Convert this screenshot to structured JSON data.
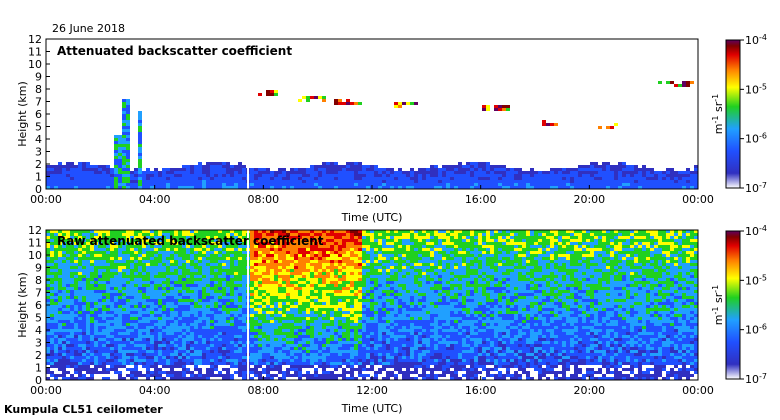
{
  "date_label": "26 June 2018",
  "footer_label": "Kumpula CL51 ceilometer",
  "colormap": [
    "#ffffff",
    "#3030c0",
    "#2050ff",
    "#20a0ff",
    "#20d020",
    "#ffff00",
    "#ff8000",
    "#e00000",
    "#800000",
    "#600060"
  ],
  "chart_data": [
    {
      "type": "heatmap",
      "title": "Attenuated backscatter coefficient",
      "xlabel": "Time (UTC)",
      "ylabel": "Height (km)",
      "xticks": [
        "00:00",
        "04:00",
        "08:00",
        "12:00",
        "16:00",
        "20:00",
        "00:00"
      ],
      "yticks": [
        "0",
        "1",
        "2",
        "3",
        "4",
        "5",
        "6",
        "7",
        "8",
        "9",
        "10",
        "11",
        "12"
      ],
      "xlim": [
        0,
        24
      ],
      "ylim": [
        0,
        12
      ],
      "colorbar": {
        "scale": "log",
        "range": [
          1e-07,
          0.0001
        ],
        "tick_exponents": [
          "-7",
          "-6",
          "-5",
          "-4"
        ],
        "label_unit": "m",
        "label_unit_exp": "-1",
        "label_sr": "sr",
        "label_sr_exp": "-1"
      },
      "features": {
        "boundary_layer": {
          "top_km": 1.8,
          "hours": [
            0,
            24
          ]
        },
        "columns": [
          {
            "hour": 2.6,
            "top_km": 4.5
          },
          {
            "hour": 2.9,
            "top_km": 7.3
          },
          {
            "hour": 3.4,
            "top_km": 6.4
          }
        ],
        "cloud_layers": [
          {
            "hours": [
              7.8,
              8.4
            ],
            "km": 7.8
          },
          {
            "hours": [
              9.2,
              10.2
            ],
            "km": 7.3
          },
          {
            "hours": [
              10.5,
              11.5
            ],
            "km": 7.0
          },
          {
            "hours": [
              12.8,
              13.6
            ],
            "km": 6.9
          },
          {
            "hours": [
              16.0,
              17.0
            ],
            "km": 6.5
          },
          {
            "hours": [
              18.2,
              18.8
            ],
            "km": 5.3
          },
          {
            "hours": [
              20.2,
              21.0
            ],
            "km": 5.1
          },
          {
            "hours": [
              22.5,
              23.8
            ],
            "km": 8.5
          }
        ],
        "gap_hour": 7.4
      }
    },
    {
      "type": "heatmap",
      "title": "Raw attenuated backscatter coefficient",
      "xlabel": "Time (UTC)",
      "ylabel": "Height (km)",
      "xticks": [
        "00:00",
        "04:00",
        "08:00",
        "12:00",
        "16:00",
        "20:00",
        "00:00"
      ],
      "yticks": [
        "0",
        "1",
        "2",
        "3",
        "4",
        "5",
        "6",
        "7",
        "8",
        "9",
        "10",
        "11",
        "12"
      ],
      "xlim": [
        0,
        24
      ],
      "ylim": [
        0,
        12
      ],
      "colorbar": {
        "scale": "log",
        "range": [
          1e-07,
          0.0001
        ],
        "tick_exponents": [
          "-7",
          "-6",
          "-5",
          "-4"
        ],
        "label_unit": "m",
        "label_unit_exp": "-1",
        "label_sr": "sr",
        "label_sr_exp": "-1"
      },
      "features": {
        "noise_peak_hours": [
          7.5,
          11.5
        ],
        "gap_hour": 7.4
      }
    }
  ]
}
